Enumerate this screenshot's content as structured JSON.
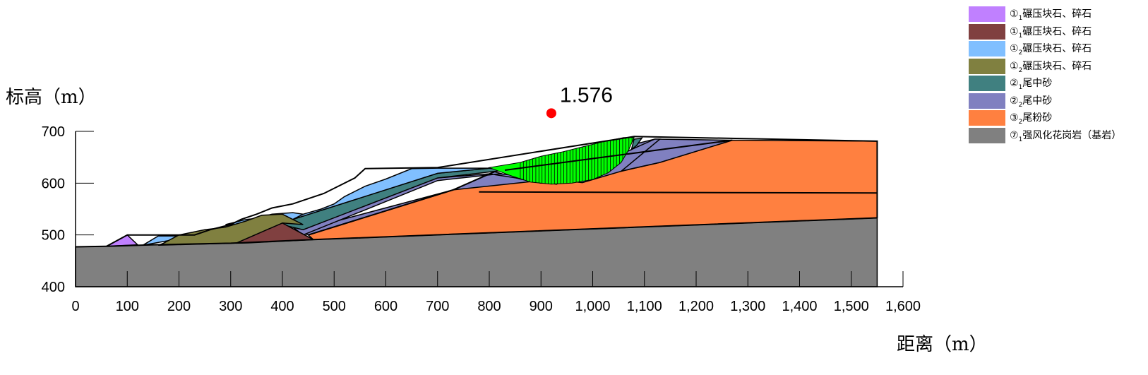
{
  "chart_data": {
    "type": "area",
    "title": "",
    "xlabel": "距离（m）",
    "ylabel": "标高（m）",
    "xlim": [
      0,
      1600
    ],
    "ylim": [
      400,
      700
    ],
    "x_ticks": [
      0,
      100,
      200,
      300,
      400,
      500,
      600,
      700,
      800,
      900,
      1000,
      1100,
      1200,
      1300,
      1400,
      1500,
      1600
    ],
    "x_tick_labels": [
      "0",
      "100",
      "200",
      "300",
      "400",
      "500",
      "600",
      "700",
      "800",
      "900",
      "1,000",
      "1,100",
      "1,200",
      "1,300",
      "1,400",
      "1,500",
      "1,600"
    ],
    "y_ticks": [
      400,
      500,
      600,
      700
    ],
    "y_tick_labels": [
      "400",
      "500",
      "600",
      "700"
    ],
    "legend_position": "top-right",
    "factor_of_safety": {
      "label": "1.576",
      "x": 920,
      "y": 735,
      "color": "#ff0000"
    },
    "legend": [
      {
        "id": "L1",
        "circled": "①",
        "sub": "1",
        "text": "碾压块石、碎石",
        "color": "#c080ff"
      },
      {
        "id": "L2",
        "circled": "①",
        "sub": "1",
        "text": "碾压块石、碎石",
        "color": "#804040"
      },
      {
        "id": "L3",
        "circled": "①",
        "sub": "2",
        "text": "碾压块石、碎石",
        "color": "#80bfff"
      },
      {
        "id": "L4",
        "circled": "①",
        "sub": "2",
        "text": "碾压块石、碎石",
        "color": "#808040"
      },
      {
        "id": "L5",
        "circled": "②",
        "sub": "1",
        "text": "尾中砂",
        "color": "#408080"
      },
      {
        "id": "L6",
        "circled": "②",
        "sub": "2",
        "text": "尾中砂",
        "color": "#8080c0"
      },
      {
        "id": "L7",
        "circled": "③",
        "sub": "2",
        "text": "尾粉砂",
        "color": "#ff8040"
      },
      {
        "id": "L8",
        "circled": "⑦",
        "sub": "1",
        "text": "强风化花岗岩（基岩）",
        "color": "#808080"
      }
    ],
    "regions": [
      {
        "layer": "L8",
        "points": [
          [
            0,
            400
          ],
          [
            0,
            477
          ],
          [
            60,
            478
          ],
          [
            150,
            481
          ],
          [
            300,
            484
          ],
          [
            460,
            491
          ],
          [
            1550,
            533
          ],
          [
            1550,
            400
          ]
        ]
      },
      {
        "layer": "L7",
        "points": [
          [
            460,
            491
          ],
          [
            1550,
            533
          ],
          [
            1550,
            681
          ],
          [
            1270,
            683
          ],
          [
            1130,
            640
          ],
          [
            1055,
            623
          ],
          [
            990,
            612
          ],
          [
            950,
            600
          ],
          [
            900,
            600
          ],
          [
            860,
            608
          ],
          [
            810,
            622
          ],
          [
            730,
            587
          ],
          [
            450,
            500
          ]
        ]
      },
      {
        "layer": "L6",
        "points": [
          [
            430,
            507
          ],
          [
            730,
            587
          ],
          [
            810,
            622
          ],
          [
            860,
            608
          ],
          [
            900,
            600
          ],
          [
            950,
            600
          ],
          [
            990,
            612
          ],
          [
            1040,
            630
          ],
          [
            1075,
            665
          ],
          [
            1080,
            675
          ],
          [
            1120,
            685
          ],
          [
            1270,
            683
          ],
          [
            1130,
            640
          ],
          [
            1040,
            620
          ],
          [
            730,
            587
          ],
          [
            450,
            500
          ]
        ]
      },
      {
        "layer": "L6",
        "points": [
          [
            410,
            523
          ],
          [
            700,
            610
          ],
          [
            800,
            618
          ],
          [
            930,
            598
          ],
          [
            1075,
            665
          ],
          [
            1120,
            685
          ],
          [
            1130,
            685
          ],
          [
            1055,
            623
          ],
          [
            980,
            601
          ],
          [
            820,
            618
          ],
          [
            700,
            605
          ],
          [
            440,
            500
          ]
        ]
      },
      {
        "layer": "L5",
        "points": [
          [
            390,
            522
          ],
          [
            420,
            530
          ],
          [
            700,
            619
          ],
          [
            800,
            629
          ],
          [
            830,
            625
          ],
          [
            700,
            610
          ],
          [
            440,
            510
          ]
        ]
      },
      {
        "layer": "L5",
        "points": [
          [
            1075,
            665
          ],
          [
            1080,
            685
          ],
          [
            1095,
            687
          ],
          [
            1085,
            673
          ]
        ]
      },
      {
        "layer": "L3",
        "points": [
          [
            420,
            530
          ],
          [
            440,
            540
          ],
          [
            475,
            550
          ],
          [
            500,
            560
          ],
          [
            520,
            574
          ],
          [
            560,
            594
          ],
          [
            600,
            608
          ],
          [
            650,
            628
          ],
          [
            700,
            629
          ],
          [
            800,
            629
          ],
          [
            700,
            619
          ]
        ]
      },
      {
        "layer": "L3",
        "points": [
          [
            130,
            480
          ],
          [
            160,
            498
          ],
          [
            230,
            498
          ]
        ]
      },
      {
        "layer": "L3",
        "points": [
          [
            290,
            520
          ],
          [
            330,
            530
          ],
          [
            350,
            532
          ],
          [
            380,
            540
          ],
          [
            420,
            543
          ],
          [
            440,
            540
          ],
          [
            420,
            530
          ],
          [
            370,
            520
          ]
        ]
      },
      {
        "layer": "L4",
        "points": [
          [
            160,
            480
          ],
          [
            300,
            484
          ],
          [
            340,
            485
          ],
          [
            400,
            523
          ],
          [
            440,
            520
          ],
          [
            400,
            540
          ],
          [
            360,
            538
          ],
          [
            330,
            527
          ],
          [
            290,
            515
          ],
          [
            250,
            510
          ],
          [
            200,
            500
          ],
          [
            170,
            484
          ]
        ]
      },
      {
        "layer": "L2",
        "points": [
          [
            310,
            484
          ],
          [
            400,
            523
          ],
          [
            460,
            491
          ],
          [
            340,
            485
          ]
        ]
      },
      {
        "layer": "L1",
        "points": [
          [
            60,
            478
          ],
          [
            100,
            500
          ],
          [
            120,
            481
          ]
        ]
      }
    ],
    "boundaries": [
      {
        "points": [
          [
            0,
            477
          ],
          [
            60,
            478
          ],
          [
            150,
            481
          ],
          [
            300,
            484
          ],
          [
            460,
            491
          ],
          [
            1550,
            533
          ]
        ]
      },
      {
        "points": [
          [
            450,
            500
          ],
          [
            730,
            587
          ],
          [
            810,
            622
          ]
        ]
      },
      {
        "points": [
          [
            830,
            625
          ],
          [
            1270,
            683
          ]
        ]
      },
      {
        "points": [
          [
            780,
            583
          ],
          [
            1550,
            581
          ]
        ]
      },
      {
        "points": [
          [
            60,
            478
          ],
          [
            100,
            500
          ],
          [
            230,
            500
          ],
          [
            260,
            510
          ],
          [
            300,
            520
          ],
          [
            320,
            530
          ],
          [
            350,
            540
          ],
          [
            380,
            552
          ],
          [
            420,
            560
          ],
          [
            450,
            570
          ],
          [
            480,
            580
          ],
          [
            510,
            595
          ],
          [
            540,
            610
          ],
          [
            560,
            628
          ],
          [
            700,
            630
          ],
          [
            1080,
            690
          ],
          [
            1550,
            681
          ],
          [
            1550,
            533
          ]
        ]
      }
    ],
    "slip_surface": {
      "color": "#00ff00",
      "points": [
        [
          800,
          630
        ],
        [
          840,
          615
        ],
        [
          880,
          602
        ],
        [
          920,
          598
        ],
        [
          960,
          600
        ],
        [
          1000,
          607
        ],
        [
          1030,
          620
        ],
        [
          1055,
          640
        ],
        [
          1070,
          665
        ],
        [
          1080,
          688
        ],
        [
          1060,
          688
        ],
        [
          1020,
          680
        ],
        [
          980,
          670
        ],
        [
          940,
          660
        ],
        [
          900,
          652
        ],
        [
          860,
          640
        ]
      ]
    }
  }
}
